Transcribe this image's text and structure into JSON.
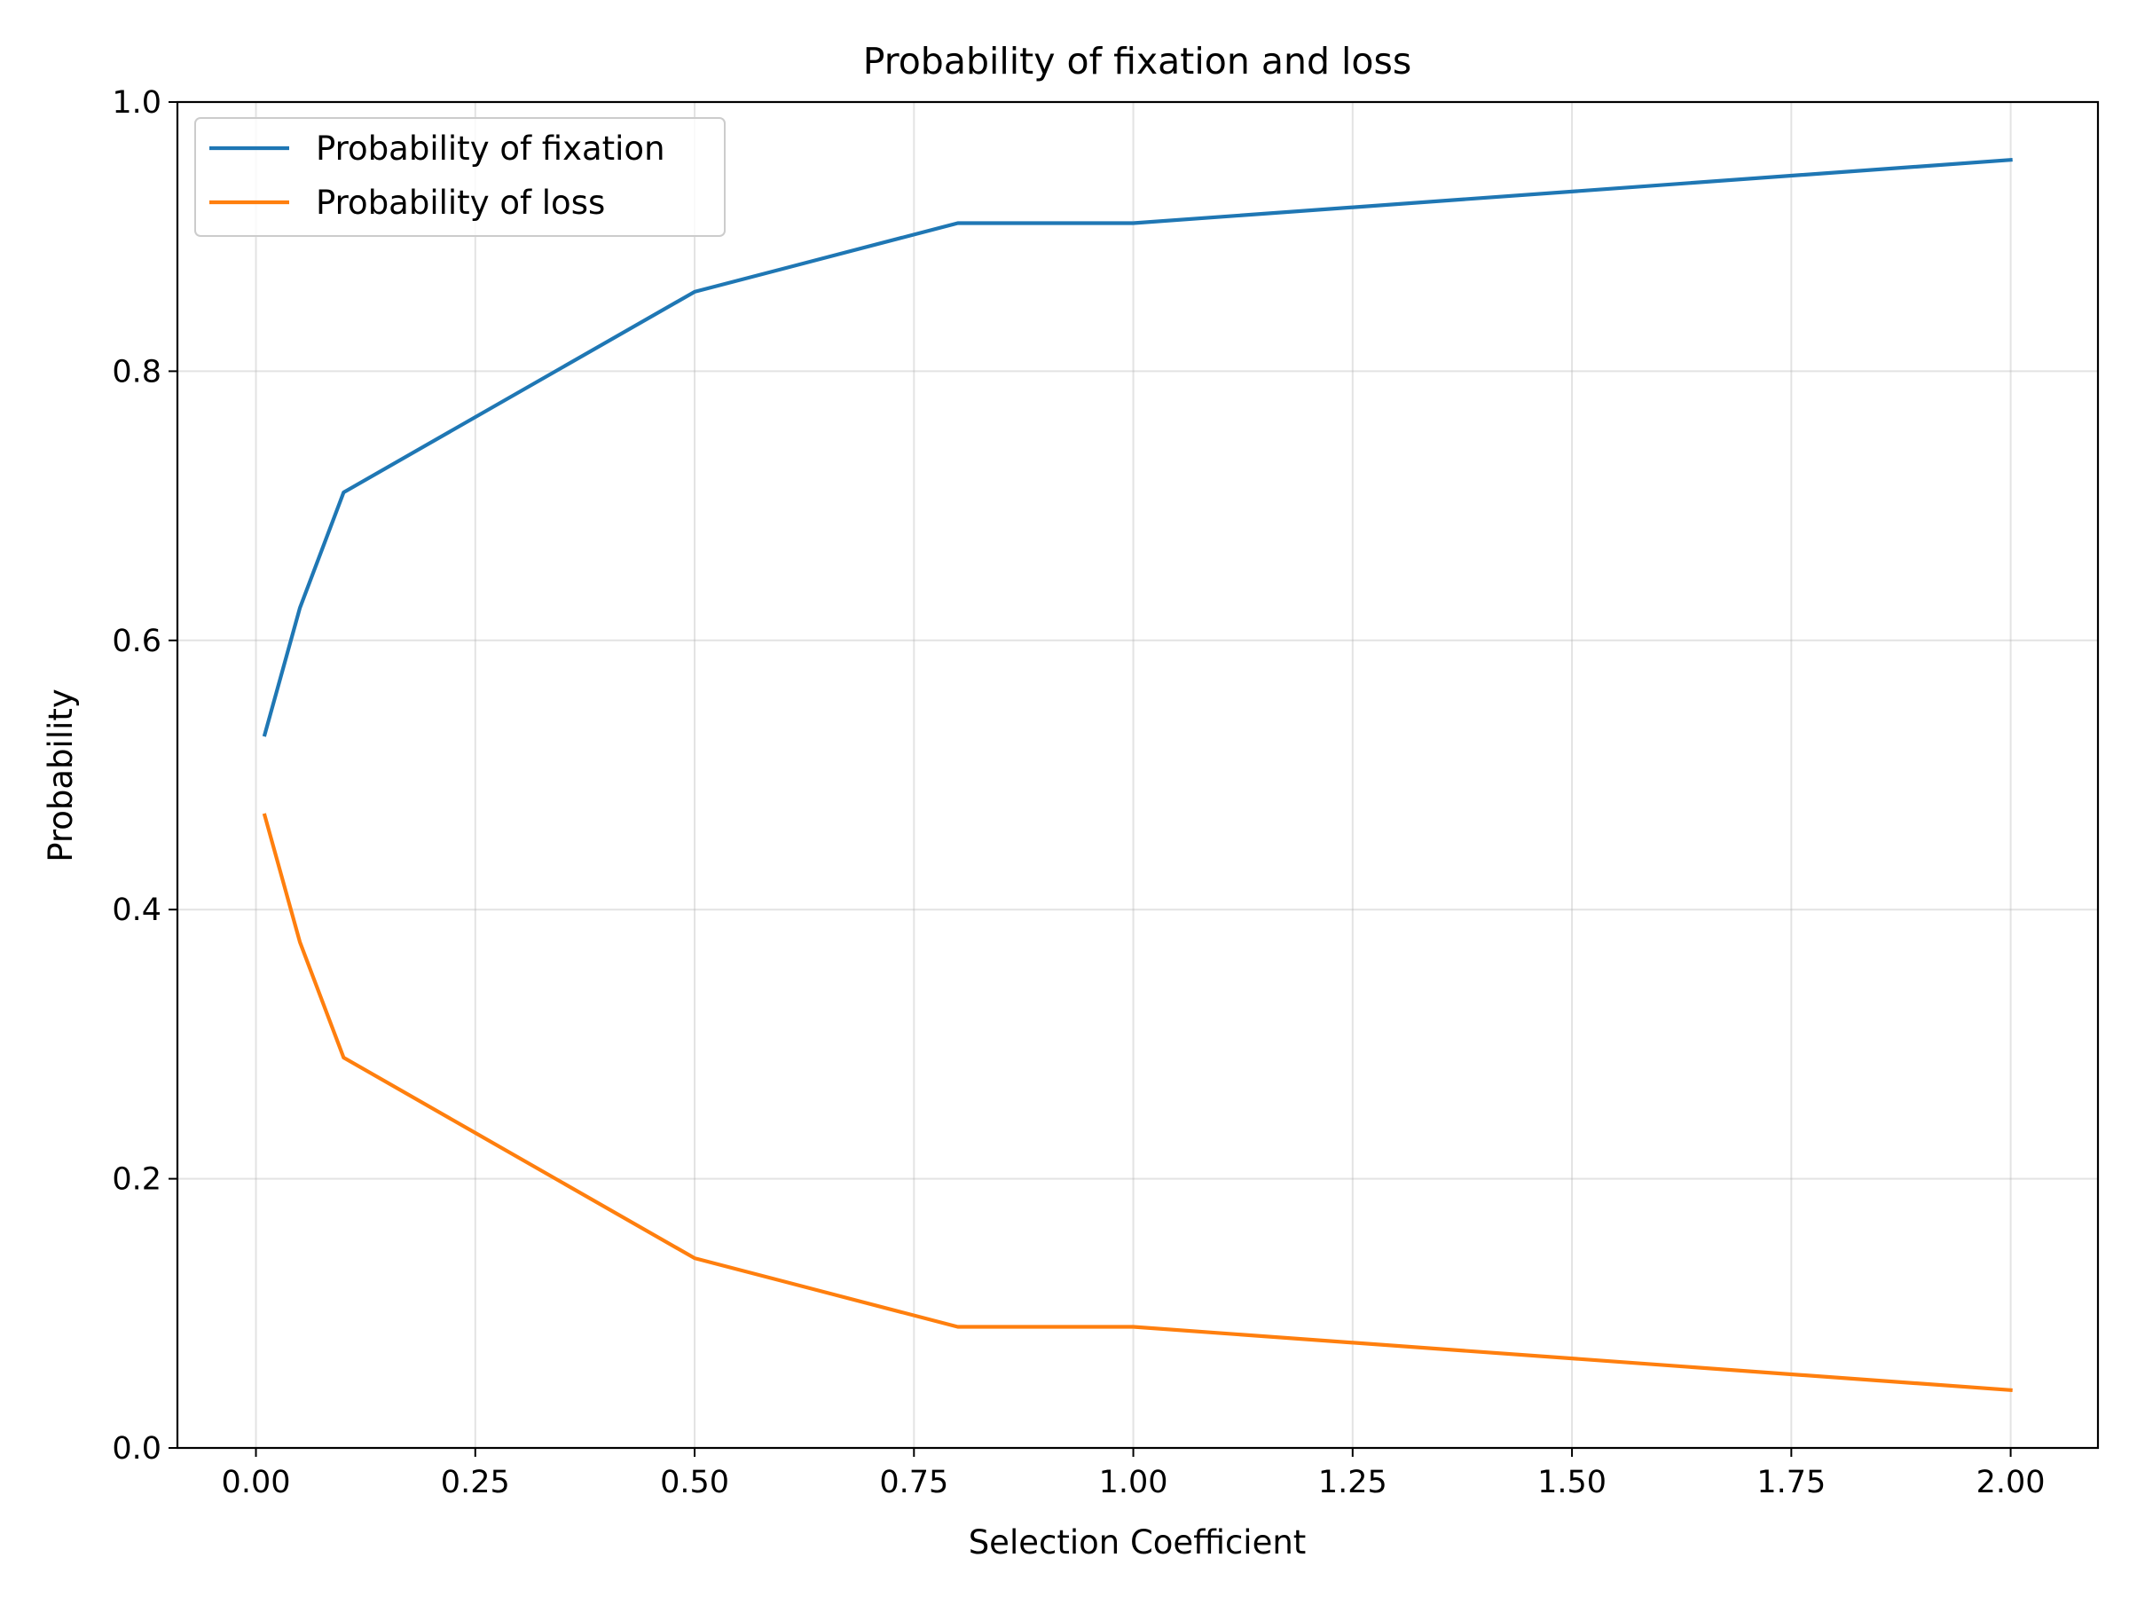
{
  "chart_data": {
    "type": "line",
    "title": "Probability of fixation and loss",
    "xlabel": "Selection Coefficient",
    "ylabel": "Probability",
    "xlim": [
      -0.0895,
      2.0995
    ],
    "ylim": [
      0.0,
      1.0
    ],
    "xticks": [
      0.0,
      0.25,
      0.5,
      0.75,
      1.0,
      1.25,
      1.5,
      1.75,
      2.0
    ],
    "xtick_labels": [
      "0.00",
      "0.25",
      "0.50",
      "0.75",
      "1.00",
      "1.25",
      "1.50",
      "1.75",
      "2.00"
    ],
    "yticks": [
      0.0,
      0.2,
      0.4,
      0.6,
      0.8,
      1.0
    ],
    "ytick_labels": [
      "0.0",
      "0.2",
      "0.4",
      "0.6",
      "0.8",
      "1.0"
    ],
    "grid": true,
    "legend_position": "top-left",
    "x": [
      0.01,
      0.05,
      0.1,
      0.5,
      0.8,
      1.0,
      2.0
    ],
    "series": [
      {
        "name": "Probability of fixation",
        "color": "#1f77b4",
        "values": [
          0.53,
          0.624,
          0.71,
          0.859,
          0.91,
          0.91,
          0.957
        ]
      },
      {
        "name": "Probability of loss",
        "color": "#ff7f0e",
        "values": [
          0.47,
          0.376,
          0.29,
          0.141,
          0.09,
          0.09,
          0.043
        ]
      }
    ]
  }
}
